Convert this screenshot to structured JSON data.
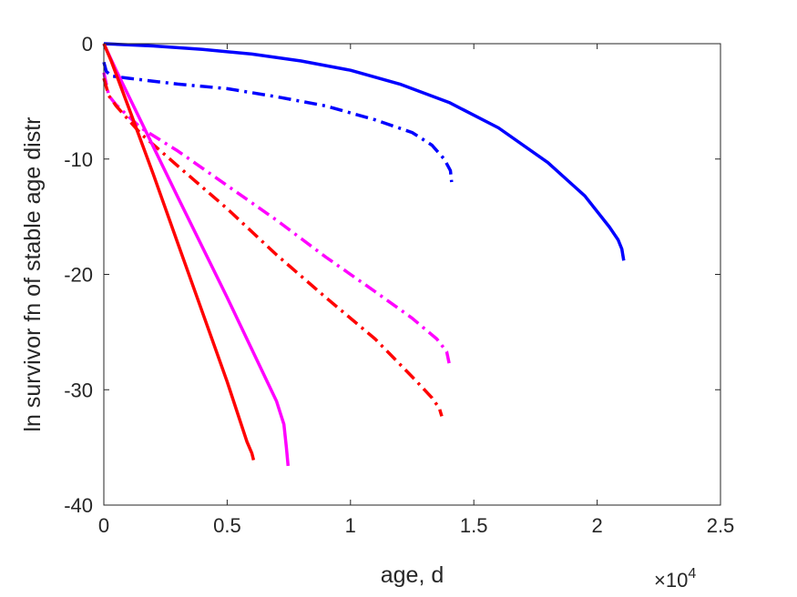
{
  "chart_data": {
    "type": "line",
    "xlabel": "age, d",
    "ylabel": "ln survivor fn of stable age distr",
    "x_exponent_base": "×10",
    "x_exponent_power": "4",
    "xlim": [
      0,
      25000
    ],
    "ylim": [
      -40,
      0
    ],
    "xticks": [
      0,
      5000,
      10000,
      15000,
      20000,
      25000
    ],
    "xtick_labels": [
      "0",
      "0.5",
      "1",
      "1.5",
      "2",
      "2.5"
    ],
    "yticks": [
      0,
      -10,
      -20,
      -30,
      -40
    ],
    "ytick_labels": [
      "0",
      "-10",
      "-20",
      "-30",
      "-40"
    ],
    "grid": false,
    "series": [
      {
        "color": "#0000ff",
        "style": "solid",
        "points": [
          [
            0,
            0
          ],
          [
            2000,
            -0.2
          ],
          [
            4000,
            -0.5
          ],
          [
            6000,
            -0.9
          ],
          [
            8000,
            -1.5
          ],
          [
            10000,
            -2.3
          ],
          [
            12000,
            -3.5
          ],
          [
            14000,
            -5.1
          ],
          [
            16000,
            -7.3
          ],
          [
            18000,
            -10.3
          ],
          [
            19500,
            -13.2
          ],
          [
            20500,
            -15.9
          ],
          [
            20850,
            -17.0
          ],
          [
            21000,
            -17.8
          ],
          [
            21080,
            -18.8
          ]
        ]
      },
      {
        "color": "#0000ff",
        "style": "dashdot",
        "points": [
          [
            0,
            -1.6
          ],
          [
            100,
            -2.4
          ],
          [
            300,
            -2.8
          ],
          [
            1000,
            -3.0
          ],
          [
            3000,
            -3.5
          ],
          [
            5000,
            -3.9
          ],
          [
            7000,
            -4.6
          ],
          [
            9000,
            -5.4
          ],
          [
            11000,
            -6.6
          ],
          [
            12500,
            -7.7
          ],
          [
            13300,
            -8.8
          ],
          [
            13800,
            -10.0
          ],
          [
            14050,
            -11.0
          ],
          [
            14100,
            -12.0
          ]
        ]
      },
      {
        "color": "#ff00ff",
        "style": "dashdot",
        "points": [
          [
            0,
            -2.5
          ],
          [
            200,
            -4.5
          ],
          [
            500,
            -5.3
          ],
          [
            1500,
            -7.3
          ],
          [
            3000,
            -9.3
          ],
          [
            5000,
            -12.3
          ],
          [
            7000,
            -15.3
          ],
          [
            9000,
            -18.5
          ],
          [
            11000,
            -21.5
          ],
          [
            12500,
            -23.8
          ],
          [
            13500,
            -25.6
          ],
          [
            13900,
            -26.7
          ],
          [
            14000,
            -27.7
          ]
        ]
      },
      {
        "color": "#ff0000",
        "style": "dashdot",
        "points": [
          [
            0,
            -3.0
          ],
          [
            200,
            -4.5
          ],
          [
            500,
            -5.4
          ],
          [
            1500,
            -7.8
          ],
          [
            3000,
            -10.6
          ],
          [
            5000,
            -14.3
          ],
          [
            7000,
            -18.3
          ],
          [
            9000,
            -22.0
          ],
          [
            11000,
            -25.6
          ],
          [
            12600,
            -29.1
          ],
          [
            13300,
            -30.7
          ],
          [
            13600,
            -31.6
          ],
          [
            13700,
            -32.3
          ]
        ]
      },
      {
        "color": "#ff00ff",
        "style": "solid",
        "points": [
          [
            0,
            0
          ],
          [
            500,
            -2.3
          ],
          [
            1500,
            -6.7
          ],
          [
            3000,
            -13.3
          ],
          [
            5000,
            -22.0
          ],
          [
            7000,
            -31.0
          ],
          [
            7300,
            -33.0
          ],
          [
            7400,
            -35.0
          ],
          [
            7470,
            -36.6
          ]
        ]
      },
      {
        "color": "#ff0000",
        "style": "solid",
        "points": [
          [
            0,
            0
          ],
          [
            300,
            -1.5
          ],
          [
            1000,
            -5.5
          ],
          [
            2000,
            -11.3
          ],
          [
            3000,
            -17.3
          ],
          [
            4000,
            -23.3
          ],
          [
            5000,
            -29.3
          ],
          [
            5800,
            -34.5
          ],
          [
            6000,
            -35.5
          ],
          [
            6070,
            -36.1
          ]
        ]
      }
    ]
  }
}
